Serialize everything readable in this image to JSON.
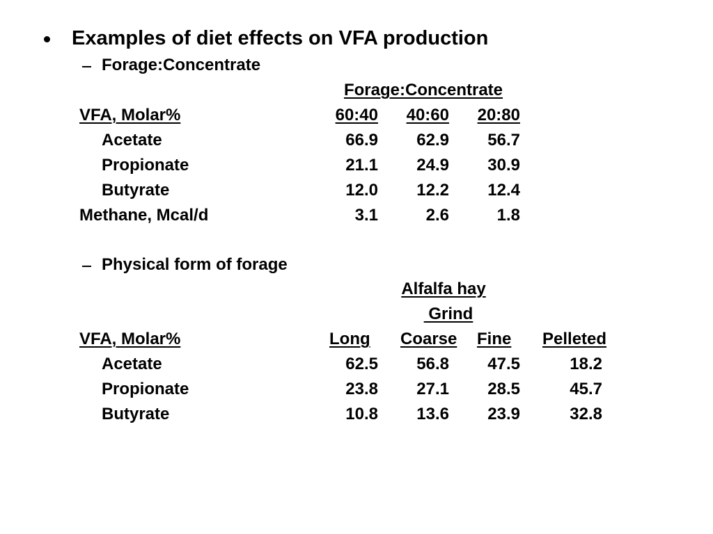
{
  "bullet": "Examples of diet effects on VFA production",
  "section_1": {
    "subtitle": "Forage:Concentrate",
    "group_header": "Forage:Concentrate",
    "row_header": "VFA, Molar%",
    "columns": [
      "60:40",
      "40:60",
      "20:80"
    ],
    "rows": [
      {
        "label": "Acetate",
        "values": [
          "66.9",
          "62.9",
          "56.7"
        ]
      },
      {
        "label": "Propionate",
        "values": [
          "21.1",
          "24.9",
          "30.9"
        ]
      },
      {
        "label": "Butyrate",
        "values": [
          "12.0",
          "12.2",
          "12.4"
        ]
      }
    ],
    "methane_row": {
      "label": "Methane, Mcal/d",
      "values": [
        "3.1",
        "2.6",
        "1.8"
      ]
    }
  },
  "section_2": {
    "subtitle": "Physical form of forage",
    "group_header": "Alfalfa hay",
    "sub_group_header": " Grind",
    "row_header": "VFA, Molar%",
    "columns": [
      "Long",
      "Coarse",
      "Fine",
      "Pelleted"
    ],
    "rows": [
      {
        "label": "Acetate",
        "values": [
          "62.5",
          "56.8",
          "47.5",
          "18.2"
        ]
      },
      {
        "label": "Propionate",
        "values": [
          "23.8",
          "27.1",
          "28.5",
          "45.7"
        ]
      },
      {
        "label": "Butyrate",
        "values": [
          "10.8",
          "13.6",
          "23.9",
          "32.8"
        ]
      }
    ]
  }
}
